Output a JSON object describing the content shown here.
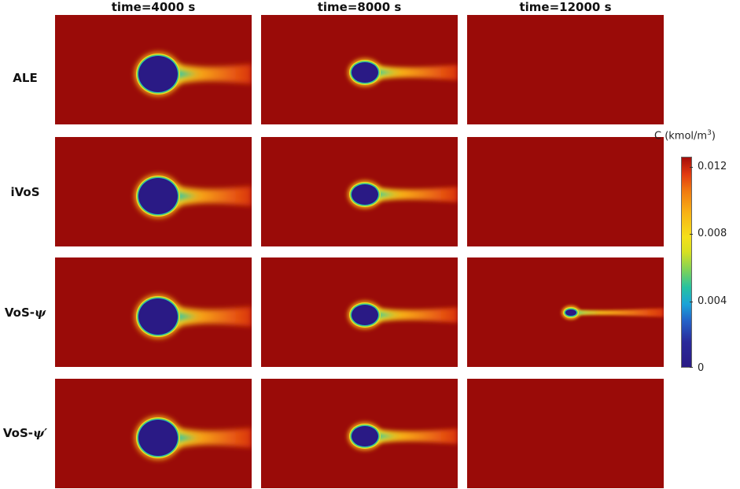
{
  "columns": [
    "time=4000 s",
    "time=8000 s",
    "time=12000 s"
  ],
  "rows": [
    {
      "label": "ALE",
      "suffix": ""
    },
    {
      "label": "iVoS",
      "suffix": ""
    },
    {
      "label": "VoS-",
      "suffix": "ψ"
    },
    {
      "label": "VoS-",
      "suffix": "ψ′"
    }
  ],
  "colorbar": {
    "title": "C (kmol/m",
    "title_sup": "3",
    "title_end": ")",
    "ticks": [
      "0.012",
      "0.008",
      "0.004",
      "0"
    ],
    "tick_values": [
      0.012,
      0.008,
      0.004,
      0
    ],
    "colors": {
      "background": "#9a0b08",
      "low": "#2a1a85",
      "high": "#a50d0a"
    }
  },
  "panels": [
    [
      {
        "bubble": "large"
      },
      {
        "bubble": "medium"
      },
      {
        "bubble": "none"
      }
    ],
    [
      {
        "bubble": "large"
      },
      {
        "bubble": "medium"
      },
      {
        "bubble": "none"
      }
    ],
    [
      {
        "bubble": "large"
      },
      {
        "bubble": "medium"
      },
      {
        "bubble": "tiny"
      }
    ],
    [
      {
        "bubble": "large"
      },
      {
        "bubble": "medium"
      },
      {
        "bubble": "none"
      }
    ]
  ]
}
